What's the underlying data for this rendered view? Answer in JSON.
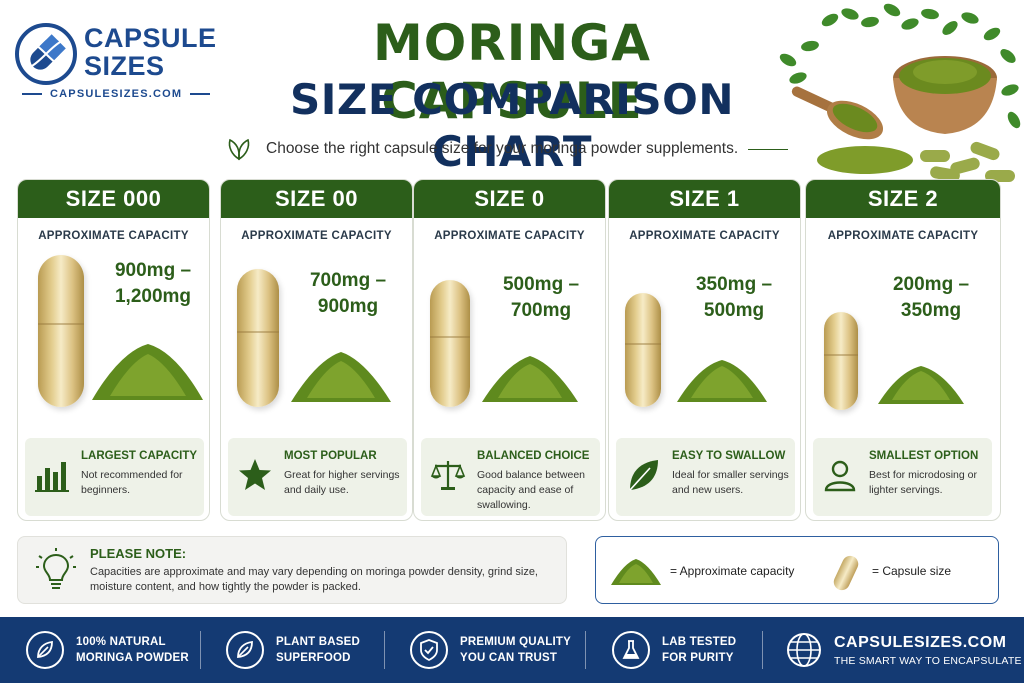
{
  "brand": {
    "name_line1": "CAPSULE",
    "name_line2": "SIZES",
    "url": "CAPSULESIZES.COM"
  },
  "header": {
    "title_line1": "MORINGA CAPSULE",
    "title_line2": "SIZE COMPARISON CHART",
    "subtitle": "Choose the right capsule size for your moringa powder supplements."
  },
  "colors": {
    "green": "#2c5e1a",
    "navy": "#12305e",
    "footer": "#143a73"
  },
  "cards": [
    {
      "size": "SIZE 000",
      "capacity_label": "APPROXIMATE CAPACITY",
      "capacity_line1": "900mg –",
      "capacity_line2": "1,200mg",
      "feature_title": "LARGEST CAPACITY",
      "feature_desc": "Not recommended for beginners.",
      "icon": "bar-chart-icon"
    },
    {
      "size": "SIZE 00",
      "capacity_label": "APPROXIMATE CAPACITY",
      "capacity_line1": "700mg –",
      "capacity_line2": "900mg",
      "feature_title": "MOST POPULAR",
      "feature_desc": "Great for higher servings and daily use.",
      "icon": "star-icon"
    },
    {
      "size": "SIZE 0",
      "capacity_label": "APPROXIMATE CAPACITY",
      "capacity_line1": "500mg –",
      "capacity_line2": "700mg",
      "feature_title": "BALANCED CHOICE",
      "feature_desc": "Good balance between capacity and ease of swallowing.",
      "icon": "scale-icon"
    },
    {
      "size": "SIZE 1",
      "capacity_label": "APPROXIMATE CAPACITY",
      "capacity_line1": "350mg –",
      "capacity_line2": "500mg",
      "feature_title": "EASY TO SWALLOW",
      "feature_desc": "Ideal for smaller servings and new users.",
      "icon": "leaf-icon"
    },
    {
      "size": "SIZE 2",
      "capacity_label": "APPROXIMATE CAPACITY",
      "capacity_line1": "200mg –",
      "capacity_line2": "350mg",
      "feature_title": "SMALLEST OPTION",
      "feature_desc": "Best for microdosing or lighter servings.",
      "icon": "person-icon"
    }
  ],
  "note": {
    "title": "PLEASE NOTE:",
    "text": "Capacities are approximate and may vary depending on moringa powder density, grind size, moisture content, and how tightly the powder is packed."
  },
  "legend": {
    "powder_label": "= Approximate capacity",
    "capsule_label": "= Capsule size"
  },
  "footer": {
    "items": [
      {
        "line1": "100% NATURAL",
        "line2": "MORINGA POWDER",
        "icon": "leaf-icon"
      },
      {
        "line1": "PLANT BASED",
        "line2": "SUPERFOOD",
        "icon": "leaf-icon"
      },
      {
        "line1": "PREMIUM QUALITY",
        "line2": "YOU CAN TRUST",
        "icon": "shield-check-icon"
      },
      {
        "line1": "LAB TESTED",
        "line2": "FOR PURITY",
        "icon": "flask-icon"
      }
    ],
    "brand_name": "CAPSULESIZES.COM",
    "brand_tagline": "THE SMART WAY TO ENCAPSULATE"
  }
}
